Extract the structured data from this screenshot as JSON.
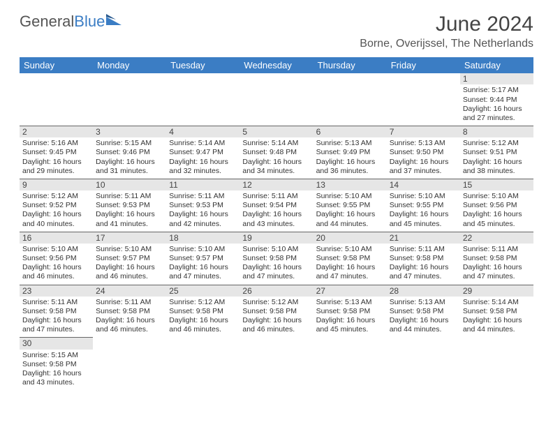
{
  "brand": {
    "part1": "General",
    "part2": "Blue"
  },
  "colors": {
    "accent": "#3b7dc4",
    "header_text": "#ffffff",
    "daynum_bg": "#e6e6e6",
    "text": "#333333",
    "rule": "#666666",
    "background": "#ffffff"
  },
  "typography": {
    "title_fontsize": 30,
    "location_fontsize": 16,
    "weekday_fontsize": 13,
    "daynum_fontsize": 12,
    "body_fontsize": 10.5
  },
  "title": "June 2024",
  "location": "Borne, Overijssel, The Netherlands",
  "weekdays": [
    "Sunday",
    "Monday",
    "Tuesday",
    "Wednesday",
    "Thursday",
    "Friday",
    "Saturday"
  ],
  "calendar": {
    "start_weekday_index": 6,
    "days": [
      {
        "n": 1,
        "sunrise": "5:17 AM",
        "sunset": "9:44 PM",
        "daylight": "16 hours and 27 minutes."
      },
      {
        "n": 2,
        "sunrise": "5:16 AM",
        "sunset": "9:45 PM",
        "daylight": "16 hours and 29 minutes."
      },
      {
        "n": 3,
        "sunrise": "5:15 AM",
        "sunset": "9:46 PM",
        "daylight": "16 hours and 31 minutes."
      },
      {
        "n": 4,
        "sunrise": "5:14 AM",
        "sunset": "9:47 PM",
        "daylight": "16 hours and 32 minutes."
      },
      {
        "n": 5,
        "sunrise": "5:14 AM",
        "sunset": "9:48 PM",
        "daylight": "16 hours and 34 minutes."
      },
      {
        "n": 6,
        "sunrise": "5:13 AM",
        "sunset": "9:49 PM",
        "daylight": "16 hours and 36 minutes."
      },
      {
        "n": 7,
        "sunrise": "5:13 AM",
        "sunset": "9:50 PM",
        "daylight": "16 hours and 37 minutes."
      },
      {
        "n": 8,
        "sunrise": "5:12 AM",
        "sunset": "9:51 PM",
        "daylight": "16 hours and 38 minutes."
      },
      {
        "n": 9,
        "sunrise": "5:12 AM",
        "sunset": "9:52 PM",
        "daylight": "16 hours and 40 minutes."
      },
      {
        "n": 10,
        "sunrise": "5:11 AM",
        "sunset": "9:53 PM",
        "daylight": "16 hours and 41 minutes."
      },
      {
        "n": 11,
        "sunrise": "5:11 AM",
        "sunset": "9:53 PM",
        "daylight": "16 hours and 42 minutes."
      },
      {
        "n": 12,
        "sunrise": "5:11 AM",
        "sunset": "9:54 PM",
        "daylight": "16 hours and 43 minutes."
      },
      {
        "n": 13,
        "sunrise": "5:10 AM",
        "sunset": "9:55 PM",
        "daylight": "16 hours and 44 minutes."
      },
      {
        "n": 14,
        "sunrise": "5:10 AM",
        "sunset": "9:55 PM",
        "daylight": "16 hours and 45 minutes."
      },
      {
        "n": 15,
        "sunrise": "5:10 AM",
        "sunset": "9:56 PM",
        "daylight": "16 hours and 45 minutes."
      },
      {
        "n": 16,
        "sunrise": "5:10 AM",
        "sunset": "9:56 PM",
        "daylight": "16 hours and 46 minutes."
      },
      {
        "n": 17,
        "sunrise": "5:10 AM",
        "sunset": "9:57 PM",
        "daylight": "16 hours and 46 minutes."
      },
      {
        "n": 18,
        "sunrise": "5:10 AM",
        "sunset": "9:57 PM",
        "daylight": "16 hours and 47 minutes."
      },
      {
        "n": 19,
        "sunrise": "5:10 AM",
        "sunset": "9:58 PM",
        "daylight": "16 hours and 47 minutes."
      },
      {
        "n": 20,
        "sunrise": "5:10 AM",
        "sunset": "9:58 PM",
        "daylight": "16 hours and 47 minutes."
      },
      {
        "n": 21,
        "sunrise": "5:11 AM",
        "sunset": "9:58 PM",
        "daylight": "16 hours and 47 minutes."
      },
      {
        "n": 22,
        "sunrise": "5:11 AM",
        "sunset": "9:58 PM",
        "daylight": "16 hours and 47 minutes."
      },
      {
        "n": 23,
        "sunrise": "5:11 AM",
        "sunset": "9:58 PM",
        "daylight": "16 hours and 47 minutes."
      },
      {
        "n": 24,
        "sunrise": "5:11 AM",
        "sunset": "9:58 PM",
        "daylight": "16 hours and 46 minutes."
      },
      {
        "n": 25,
        "sunrise": "5:12 AM",
        "sunset": "9:58 PM",
        "daylight": "16 hours and 46 minutes."
      },
      {
        "n": 26,
        "sunrise": "5:12 AM",
        "sunset": "9:58 PM",
        "daylight": "16 hours and 46 minutes."
      },
      {
        "n": 27,
        "sunrise": "5:13 AM",
        "sunset": "9:58 PM",
        "daylight": "16 hours and 45 minutes."
      },
      {
        "n": 28,
        "sunrise": "5:13 AM",
        "sunset": "9:58 PM",
        "daylight": "16 hours and 44 minutes."
      },
      {
        "n": 29,
        "sunrise": "5:14 AM",
        "sunset": "9:58 PM",
        "daylight": "16 hours and 44 minutes."
      },
      {
        "n": 30,
        "sunrise": "5:15 AM",
        "sunset": "9:58 PM",
        "daylight": "16 hours and 43 minutes."
      }
    ]
  },
  "labels": {
    "sunrise_prefix": "Sunrise: ",
    "sunset_prefix": "Sunset: ",
    "daylight_prefix": "Daylight: "
  }
}
